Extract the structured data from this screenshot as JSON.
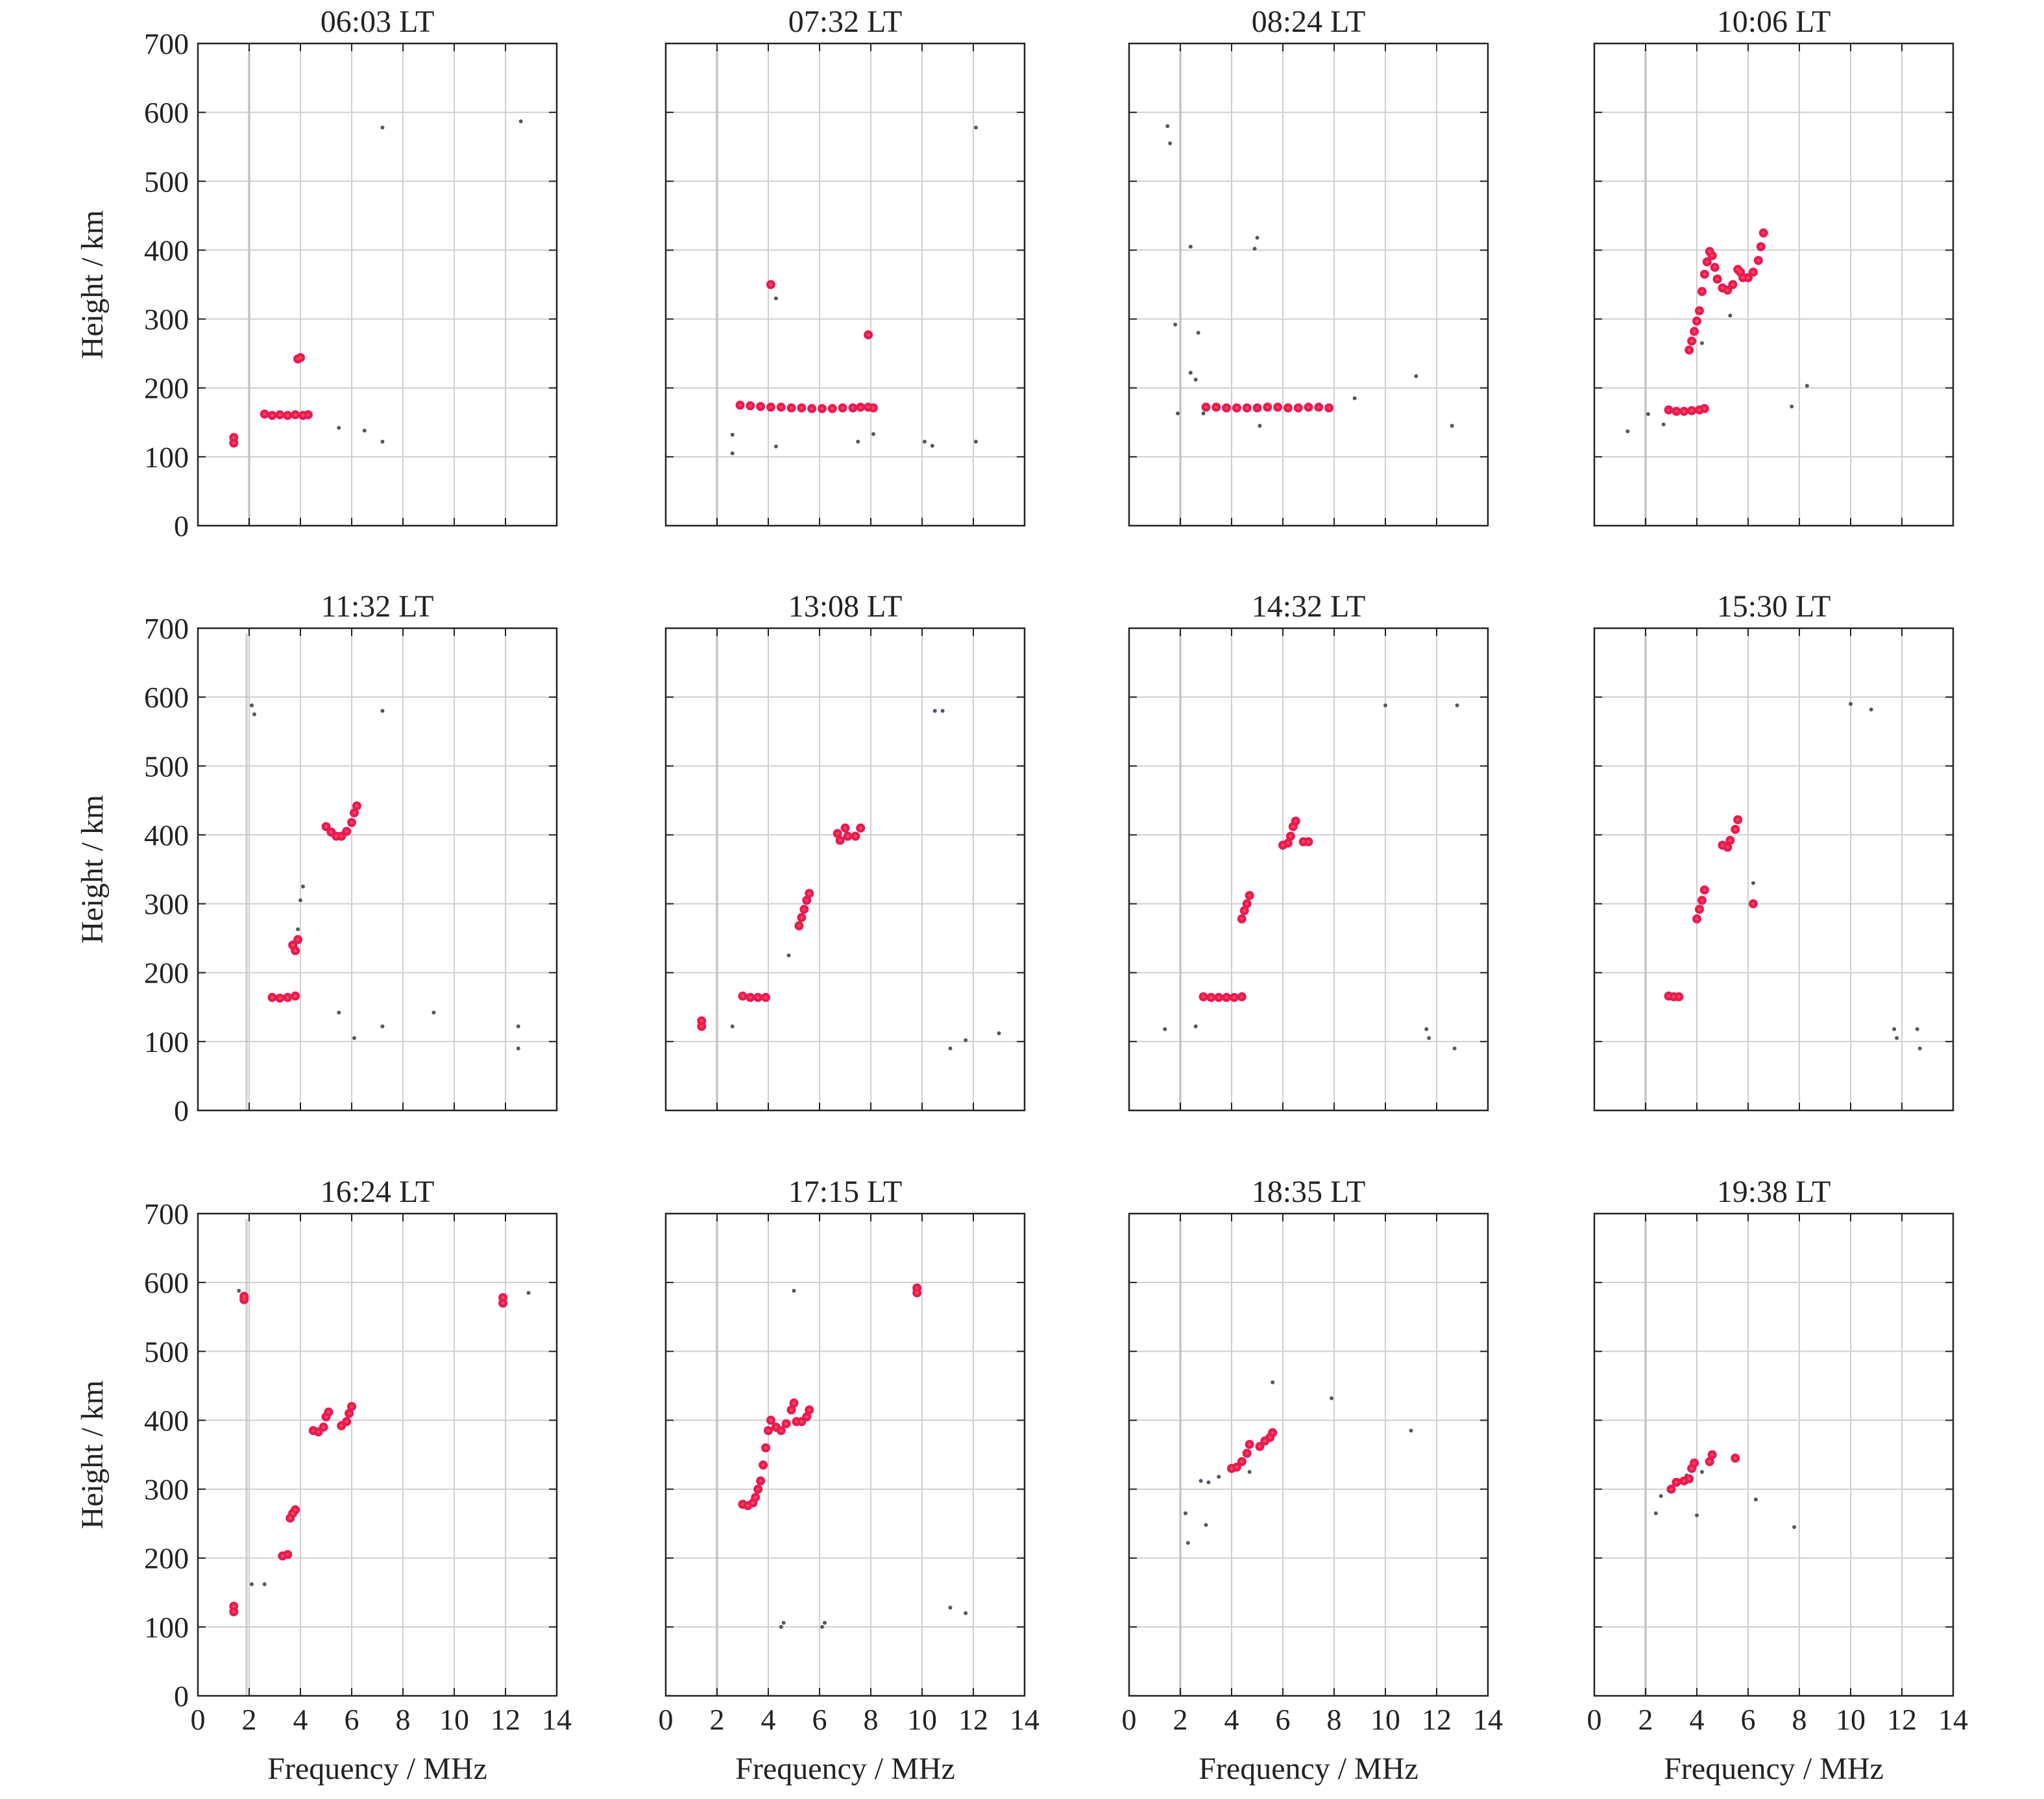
{
  "chart_data": [
    {
      "type": "scatter",
      "title": "06:03 LT",
      "points": [
        [
          1.4,
          120
        ],
        [
          1.4,
          128
        ],
        [
          2.6,
          162
        ],
        [
          2.9,
          160
        ],
        [
          3.2,
          161
        ],
        [
          3.5,
          160
        ],
        [
          3.8,
          161
        ],
        [
          4.1,
          160
        ],
        [
          4.3,
          161
        ],
        [
          3.9,
          242
        ],
        [
          4.0,
          244
        ]
      ],
      "noise": [
        [
          5.5,
          142
        ],
        [
          6.5,
          138
        ],
        [
          7.2,
          122
        ],
        [
          7.2,
          578
        ],
        [
          12.6,
          587
        ]
      ]
    },
    {
      "type": "scatter",
      "title": "07:32 LT",
      "points": [
        [
          2.9,
          175
        ],
        [
          3.3,
          174
        ],
        [
          3.7,
          173
        ],
        [
          4.1,
          172
        ],
        [
          4.5,
          172
        ],
        [
          4.9,
          171
        ],
        [
          5.3,
          171
        ],
        [
          5.7,
          170
        ],
        [
          6.1,
          170
        ],
        [
          6.5,
          170
        ],
        [
          6.9,
          171
        ],
        [
          7.3,
          171
        ],
        [
          7.6,
          172
        ],
        [
          7.9,
          172
        ],
        [
          8.1,
          171
        ],
        [
          4.1,
          350
        ],
        [
          7.9,
          277
        ]
      ],
      "noise": [
        [
          4.3,
          330
        ],
        [
          2.6,
          132
        ],
        [
          2.6,
          105
        ],
        [
          4.3,
          115
        ],
        [
          7.5,
          122
        ],
        [
          8.1,
          133
        ],
        [
          10.1,
          122
        ],
        [
          10.4,
          116
        ],
        [
          12.1,
          578
        ],
        [
          12.1,
          122
        ]
      ]
    },
    {
      "type": "scatter",
      "title": "08:24 LT",
      "points": [
        [
          3.0,
          172
        ],
        [
          3.4,
          172
        ],
        [
          3.8,
          171
        ],
        [
          4.2,
          171
        ],
        [
          4.6,
          171
        ],
        [
          5.0,
          171
        ],
        [
          5.4,
          172
        ],
        [
          5.8,
          172
        ],
        [
          6.2,
          171
        ],
        [
          6.6,
          171
        ],
        [
          7.0,
          172
        ],
        [
          7.4,
          172
        ],
        [
          7.8,
          171
        ]
      ],
      "noise": [
        [
          1.5,
          580
        ],
        [
          1.6,
          555
        ],
        [
          1.8,
          292
        ],
        [
          1.9,
          163
        ],
        [
          2.4,
          405
        ],
        [
          2.4,
          222
        ],
        [
          2.6,
          212
        ],
        [
          2.7,
          280
        ],
        [
          2.9,
          163
        ],
        [
          5.0,
          418
        ],
        [
          4.9,
          402
        ],
        [
          5.1,
          145
        ],
        [
          8.8,
          185
        ],
        [
          11.2,
          217
        ],
        [
          12.6,
          145
        ]
      ]
    },
    {
      "type": "scatter",
      "title": "10:06 LT",
      "points": [
        [
          2.9,
          168
        ],
        [
          3.2,
          166
        ],
        [
          3.5,
          166
        ],
        [
          3.8,
          167
        ],
        [
          4.1,
          168
        ],
        [
          4.3,
          170
        ],
        [
          3.7,
          255
        ],
        [
          3.8,
          268
        ],
        [
          3.9,
          282
        ],
        [
          4.0,
          297
        ],
        [
          4.1,
          312
        ],
        [
          4.2,
          340
        ],
        [
          4.3,
          365
        ],
        [
          4.4,
          383
        ],
        [
          4.5,
          398
        ],
        [
          4.6,
          392
        ],
        [
          4.7,
          375
        ],
        [
          4.8,
          358
        ],
        [
          5.0,
          345
        ],
        [
          5.2,
          342
        ],
        [
          5.4,
          350
        ],
        [
          5.6,
          372
        ],
        [
          5.7,
          368
        ],
        [
          5.8,
          360
        ],
        [
          6.0,
          360
        ],
        [
          6.2,
          368
        ],
        [
          6.4,
          385
        ],
        [
          6.5,
          405
        ],
        [
          6.6,
          425
        ]
      ],
      "noise": [
        [
          1.3,
          137
        ],
        [
          2.1,
          162
        ],
        [
          2.7,
          147
        ],
        [
          4.2,
          265
        ],
        [
          5.3,
          305
        ],
        [
          7.7,
          173
        ],
        [
          8.3,
          203
        ]
      ]
    },
    {
      "type": "scatter",
      "title": "11:32 LT",
      "points": [
        [
          2.9,
          164
        ],
        [
          3.2,
          163
        ],
        [
          3.5,
          164
        ],
        [
          3.8,
          166
        ],
        [
          3.7,
          240
        ],
        [
          3.8,
          232
        ],
        [
          3.9,
          248
        ],
        [
          5.0,
          412
        ],
        [
          5.2,
          404
        ],
        [
          5.4,
          398
        ],
        [
          5.6,
          398
        ],
        [
          5.8,
          405
        ],
        [
          6.0,
          418
        ],
        [
          6.1,
          432
        ],
        [
          6.2,
          442
        ]
      ],
      "noise": [
        [
          2.1,
          588
        ],
        [
          2.2,
          575
        ],
        [
          3.9,
          263
        ],
        [
          4.0,
          305
        ],
        [
          4.1,
          325
        ],
        [
          5.5,
          142
        ],
        [
          6.1,
          105
        ],
        [
          7.2,
          122
        ],
        [
          7.2,
          580
        ],
        [
          9.2,
          142
        ],
        [
          12.5,
          122
        ],
        [
          12.5,
          90
        ]
      ]
    },
    {
      "type": "scatter",
      "title": "13:08 LT",
      "points": [
        [
          1.4,
          122
        ],
        [
          1.4,
          130
        ],
        [
          3.0,
          166
        ],
        [
          3.3,
          164
        ],
        [
          3.6,
          164
        ],
        [
          3.9,
          164
        ],
        [
          5.2,
          268
        ],
        [
          5.3,
          280
        ],
        [
          5.4,
          292
        ],
        [
          5.5,
          305
        ],
        [
          5.6,
          315
        ],
        [
          6.7,
          402
        ],
        [
          6.8,
          392
        ],
        [
          7.0,
          410
        ],
        [
          7.1,
          398
        ],
        [
          7.4,
          398
        ],
        [
          7.6,
          410
        ]
      ],
      "noise": [
        [
          2.6,
          122
        ],
        [
          4.8,
          225
        ],
        [
          10.5,
          580
        ],
        [
          10.8,
          580
        ],
        [
          11.1,
          90
        ],
        [
          11.7,
          102
        ],
        [
          13.0,
          112
        ]
      ]
    },
    {
      "type": "scatter",
      "title": "14:32 LT",
      "points": [
        [
          2.9,
          165
        ],
        [
          3.2,
          164
        ],
        [
          3.5,
          164
        ],
        [
          3.8,
          164
        ],
        [
          4.1,
          164
        ],
        [
          4.4,
          165
        ],
        [
          4.4,
          278
        ],
        [
          4.5,
          290
        ],
        [
          4.6,
          300
        ],
        [
          4.7,
          312
        ],
        [
          6.0,
          385
        ],
        [
          6.2,
          388
        ],
        [
          6.3,
          398
        ],
        [
          6.4,
          412
        ],
        [
          6.5,
          420
        ],
        [
          6.8,
          390
        ],
        [
          7.0,
          390
        ]
      ],
      "noise": [
        [
          1.4,
          118
        ],
        [
          2.6,
          122
        ],
        [
          10.0,
          588
        ],
        [
          11.6,
          118
        ],
        [
          11.7,
          105
        ],
        [
          12.7,
          90
        ],
        [
          12.8,
          588
        ]
      ]
    },
    {
      "type": "scatter",
      "title": "15:30 LT",
      "points": [
        [
          2.9,
          166
        ],
        [
          3.1,
          165
        ],
        [
          3.3,
          165
        ],
        [
          4.0,
          278
        ],
        [
          4.1,
          292
        ],
        [
          4.2,
          305
        ],
        [
          4.3,
          320
        ],
        [
          5.0,
          385
        ],
        [
          5.2,
          382
        ],
        [
          5.3,
          392
        ],
        [
          5.5,
          408
        ],
        [
          5.6,
          422
        ],
        [
          6.2,
          300
        ]
      ],
      "noise": [
        [
          6.2,
          330
        ],
        [
          10.0,
          590
        ],
        [
          10.8,
          582
        ],
        [
          11.7,
          118
        ],
        [
          11.8,
          105
        ],
        [
          12.6,
          118
        ],
        [
          12.7,
          90
        ]
      ]
    },
    {
      "type": "scatter",
      "title": "16:24 LT",
      "points": [
        [
          1.4,
          122
        ],
        [
          1.4,
          130
        ],
        [
          1.8,
          575
        ],
        [
          1.8,
          580
        ],
        [
          3.3,
          203
        ],
        [
          3.5,
          205
        ],
        [
          3.6,
          258
        ],
        [
          3.7,
          265
        ],
        [
          3.8,
          270
        ],
        [
          4.5,
          385
        ],
        [
          4.7,
          383
        ],
        [
          4.9,
          390
        ],
        [
          5.0,
          405
        ],
        [
          5.1,
          412
        ],
        [
          5.6,
          392
        ],
        [
          5.8,
          398
        ],
        [
          5.9,
          410
        ],
        [
          6.0,
          420
        ],
        [
          11.9,
          570
        ],
        [
          11.9,
          578
        ]
      ],
      "noise": [
        [
          1.6,
          588
        ],
        [
          2.1,
          162
        ],
        [
          2.6,
          162
        ],
        [
          12.9,
          585
        ]
      ]
    },
    {
      "type": "scatter",
      "title": "17:15 LT",
      "points": [
        [
          3.0,
          278
        ],
        [
          3.2,
          276
        ],
        [
          3.4,
          280
        ],
        [
          3.5,
          288
        ],
        [
          3.6,
          300
        ],
        [
          3.7,
          312
        ],
        [
          3.8,
          335
        ],
        [
          3.9,
          360
        ],
        [
          4.0,
          385
        ],
        [
          4.1,
          400
        ],
        [
          4.3,
          390
        ],
        [
          4.5,
          385
        ],
        [
          4.7,
          395
        ],
        [
          4.9,
          415
        ],
        [
          5.0,
          425
        ],
        [
          5.1,
          398
        ],
        [
          5.3,
          398
        ],
        [
          5.5,
          405
        ],
        [
          5.6,
          415
        ],
        [
          9.8,
          585
        ],
        [
          9.8,
          592
        ]
      ],
      "noise": [
        [
          4.5,
          100
        ],
        [
          4.6,
          106
        ],
        [
          5.0,
          588
        ],
        [
          6.1,
          100
        ],
        [
          6.2,
          106
        ],
        [
          11.1,
          128
        ],
        [
          11.7,
          120
        ]
      ]
    },
    {
      "type": "scatter",
      "title": "18:35 LT",
      "points": [
        [
          4.0,
          330
        ],
        [
          4.2,
          332
        ],
        [
          4.4,
          340
        ],
        [
          4.6,
          352
        ],
        [
          4.7,
          365
        ],
        [
          5.1,
          362
        ],
        [
          5.3,
          370
        ],
        [
          5.5,
          375
        ],
        [
          5.6,
          382
        ]
      ],
      "noise": [
        [
          2.2,
          265
        ],
        [
          2.3,
          222
        ],
        [
          2.8,
          312
        ],
        [
          3.0,
          248
        ],
        [
          3.1,
          310
        ],
        [
          3.5,
          318
        ],
        [
          4.7,
          325
        ],
        [
          5.6,
          455
        ],
        [
          7.9,
          432
        ],
        [
          11.0,
          385
        ]
      ]
    },
    {
      "type": "scatter",
      "title": "19:38 LT",
      "points": [
        [
          3.0,
          300
        ],
        [
          3.2,
          310
        ],
        [
          3.5,
          312
        ],
        [
          3.7,
          315
        ],
        [
          3.8,
          330
        ],
        [
          3.9,
          338
        ],
        [
          4.5,
          340
        ],
        [
          4.6,
          350
        ],
        [
          5.5,
          345
        ]
      ],
      "noise": [
        [
          2.4,
          265
        ],
        [
          2.6,
          290
        ],
        [
          3.6,
          320
        ],
        [
          4.0,
          262
        ],
        [
          4.2,
          325
        ],
        [
          6.3,
          285
        ],
        [
          7.8,
          245
        ]
      ]
    }
  ],
  "axes": {
    "xlabel": "Frequency / MHz",
    "ylabel": "Height / km",
    "xlim": [
      0,
      14
    ],
    "ylim": [
      0,
      700
    ],
    "xticks": [
      "0",
      "2",
      "4",
      "6",
      "8",
      "10",
      "12",
      "14"
    ],
    "yticks": [
      "0",
      "100",
      "200",
      "300",
      "400",
      "500",
      "600",
      "700"
    ],
    "grid": true
  },
  "colors": {
    "trace": "#e8195a",
    "trace_core": "#ff5a2a",
    "noise": "#555566",
    "grid": "#cfcfcf",
    "frame": "#222222",
    "interference_line": "#b8b8b8"
  }
}
